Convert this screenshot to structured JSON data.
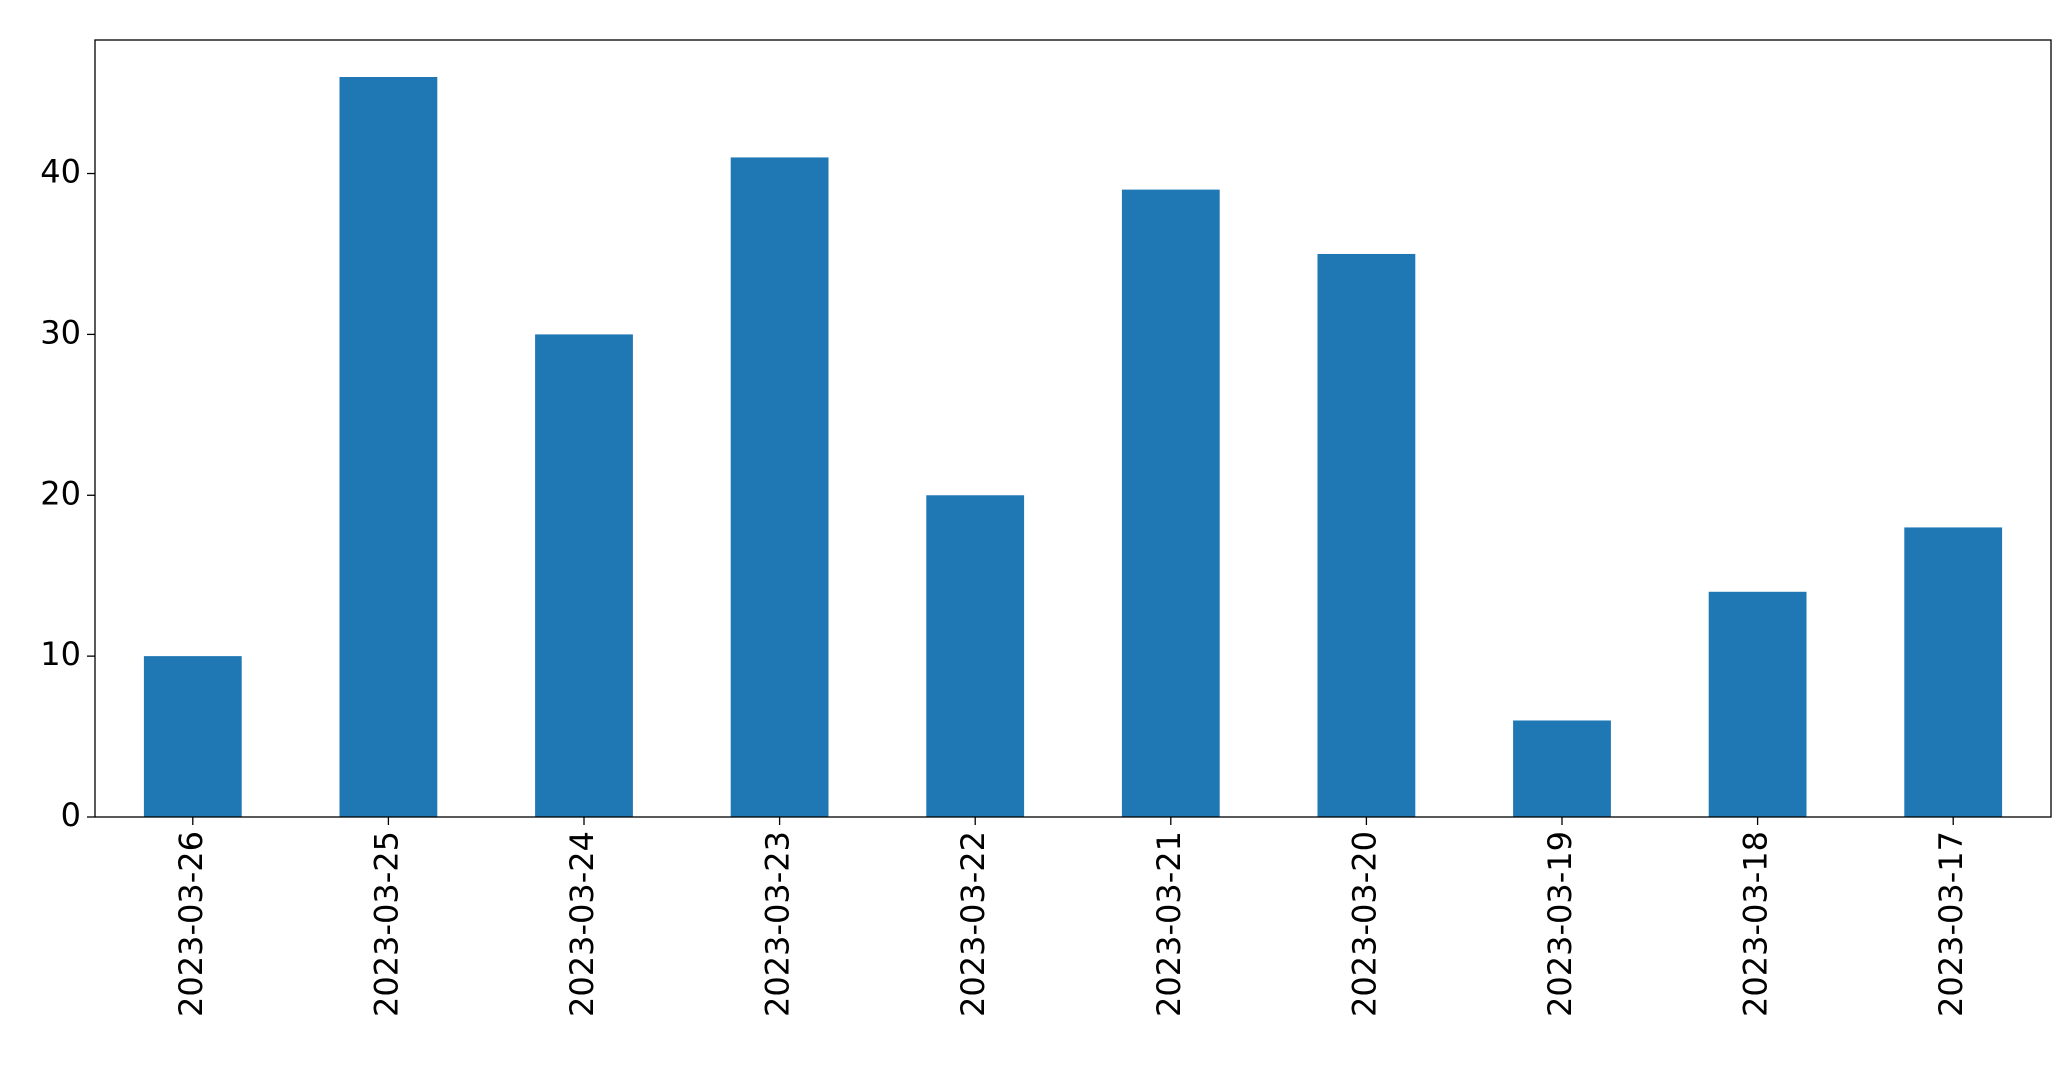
{
  "chart_data": {
    "type": "bar",
    "categories": [
      "2023-03-26",
      "2023-03-25",
      "2023-03-24",
      "2023-03-23",
      "2023-03-22",
      "2023-03-21",
      "2023-03-20",
      "2023-03-19",
      "2023-03-18",
      "2023-03-17"
    ],
    "values": [
      10,
      46,
      30,
      41,
      20,
      39,
      35,
      6,
      14,
      18
    ],
    "color": "#1f77b4",
    "ylim": [
      0,
      48.3
    ],
    "yticks": [
      0,
      10,
      20,
      30,
      40
    ],
    "grid": false
  }
}
